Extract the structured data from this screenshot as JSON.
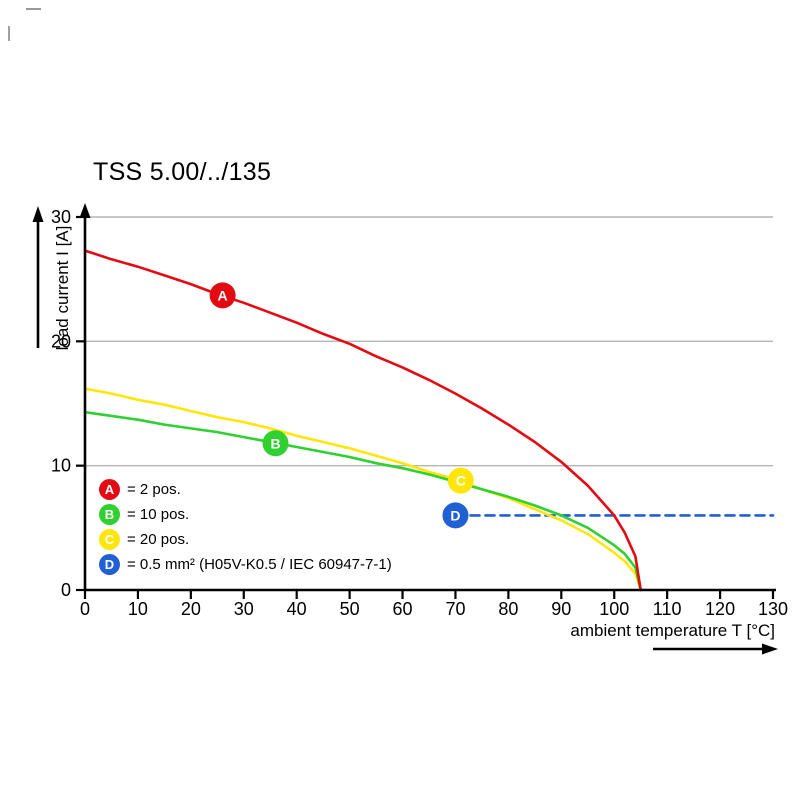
{
  "style": {
    "background": "#ffffff",
    "grid_color": "#b5b5b5",
    "axis_color": "#000000",
    "marker_text_color": "#ffffff"
  },
  "chart_data": {
    "type": "line",
    "title": "TSS 5.00/../135",
    "xlabel": "ambient temperature T [°C]",
    "ylabel": "load current I [A]",
    "xlim": [
      0,
      130
    ],
    "ylim": [
      0,
      30
    ],
    "x_ticks": [
      0,
      10,
      20,
      30,
      40,
      50,
      60,
      70,
      80,
      90,
      100,
      110,
      120,
      130
    ],
    "y_ticks": [
      0,
      10,
      20,
      30
    ],
    "grid": "horizontal-only",
    "legend_position": "inside-lower-left",
    "series": [
      {
        "id": "A",
        "name": "2 pos.",
        "color": "#e30b13",
        "line_style": "solid",
        "points": [
          [
            0,
            27.3
          ],
          [
            5,
            26.6
          ],
          [
            10,
            26.0
          ],
          [
            15,
            25.3
          ],
          [
            20,
            24.6
          ],
          [
            25,
            23.8
          ],
          [
            30,
            23.1
          ],
          [
            35,
            22.3
          ],
          [
            40,
            21.5
          ],
          [
            45,
            20.6
          ],
          [
            50,
            19.8
          ],
          [
            55,
            18.8
          ],
          [
            60,
            17.9
          ],
          [
            65,
            16.9
          ],
          [
            70,
            15.8
          ],
          [
            75,
            14.6
          ],
          [
            80,
            13.3
          ],
          [
            85,
            11.9
          ],
          [
            90,
            10.3
          ],
          [
            95,
            8.4
          ],
          [
            100,
            6.0
          ],
          [
            102,
            4.6
          ],
          [
            104,
            2.7
          ],
          [
            105,
            0
          ]
        ],
        "marker": {
          "letter": "A",
          "x": 26,
          "y": 23.7
        }
      },
      {
        "id": "B",
        "name": "10 pos.",
        "color": "#2fd02f",
        "line_style": "solid",
        "points": [
          [
            0,
            14.3
          ],
          [
            5,
            14.0
          ],
          [
            10,
            13.7
          ],
          [
            15,
            13.3
          ],
          [
            20,
            13.0
          ],
          [
            25,
            12.7
          ],
          [
            30,
            12.3
          ],
          [
            35,
            11.9
          ],
          [
            40,
            11.5
          ],
          [
            45,
            11.1
          ],
          [
            50,
            10.7
          ],
          [
            55,
            10.2
          ],
          [
            60,
            9.8
          ],
          [
            65,
            9.3
          ],
          [
            70,
            8.7
          ],
          [
            75,
            8.1
          ],
          [
            80,
            7.5
          ],
          [
            85,
            6.8
          ],
          [
            90,
            6.0
          ],
          [
            95,
            5.0
          ],
          [
            100,
            3.6
          ],
          [
            102,
            2.9
          ],
          [
            104,
            1.8
          ],
          [
            105,
            0
          ]
        ],
        "marker": {
          "letter": "B",
          "x": 36,
          "y": 11.8
        }
      },
      {
        "id": "C",
        "name": "20 pos.",
        "color": "#ffe60a",
        "line_style": "solid",
        "points": [
          [
            0,
            16.2
          ],
          [
            5,
            15.8
          ],
          [
            10,
            15.3
          ],
          [
            15,
            14.9
          ],
          [
            20,
            14.4
          ],
          [
            25,
            13.9
          ],
          [
            30,
            13.5
          ],
          [
            35,
            13.0
          ],
          [
            40,
            12.4
          ],
          [
            45,
            11.9
          ],
          [
            50,
            11.4
          ],
          [
            55,
            10.8
          ],
          [
            60,
            10.2
          ],
          [
            65,
            9.5
          ],
          [
            70,
            8.9
          ],
          [
            75,
            8.1
          ],
          [
            80,
            7.4
          ],
          [
            85,
            6.5
          ],
          [
            90,
            5.6
          ],
          [
            95,
            4.5
          ],
          [
            100,
            3.0
          ],
          [
            102,
            2.3
          ],
          [
            104,
            1.3
          ],
          [
            105,
            0
          ]
        ],
        "marker": {
          "letter": "C",
          "x": 71,
          "y": 8.8
        }
      },
      {
        "id": "D",
        "name": "0.5 mm² (H05V-K0.5 / IEC 60947-7-1)",
        "color": "#2160d3",
        "line_style": "dashed",
        "points": [
          [
            70,
            6
          ],
          [
            130,
            6
          ]
        ],
        "marker": {
          "letter": "D",
          "x": 70,
          "y": 6
        }
      }
    ],
    "legend": [
      {
        "letter": "A",
        "color": "#e30b13",
        "text": "= 2 pos."
      },
      {
        "letter": "B",
        "color": "#2fd02f",
        "text": "= 10 pos."
      },
      {
        "letter": "C",
        "color": "#ffe60a",
        "text": "= 20 pos."
      },
      {
        "letter": "D",
        "color": "#2160d3",
        "text": "= 0.5 mm² (H05V-K0.5 / IEC 60947-7-1)"
      }
    ]
  }
}
